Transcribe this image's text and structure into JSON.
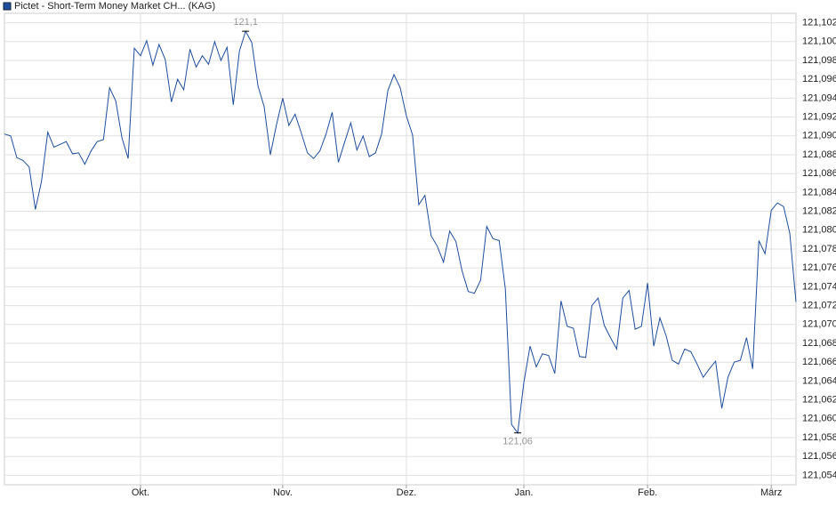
{
  "chart_data": {
    "type": "line",
    "series": [
      {
        "name": "Pictet - Short-Term Money Market CH... (KAG)",
        "color": "#1f4e9c",
        "values": [
          121.0902,
          121.09,
          121.0877,
          121.0874,
          121.0867,
          121.0822,
          121.0852,
          121.0904,
          121.0888,
          121.0891,
          121.0894,
          121.0881,
          121.0882,
          121.087,
          121.0884,
          121.0894,
          121.0896,
          121.0951,
          121.0937,
          121.0898,
          121.0876,
          121.0993,
          121.0985,
          121.1001,
          121.0975,
          121.0997,
          121.0981,
          121.0936,
          121.096,
          121.0949,
          121.0992,
          121.0973,
          121.0985,
          121.0976,
          121.1,
          121.098,
          121.0994,
          121.0933,
          121.099,
          121.1011,
          121.0999,
          121.0953,
          121.0931,
          121.088,
          121.0912,
          121.094,
          121.0911,
          121.0923,
          121.0903,
          121.0882,
          121.0876,
          121.0884,
          121.0902,
          121.0925,
          121.0872,
          121.0893,
          121.0914,
          121.0885,
          121.09,
          121.0878,
          121.0882,
          121.0902,
          121.0948,
          121.0965,
          121.0951,
          121.0921,
          121.0901,
          121.0827,
          121.0837,
          121.0794,
          121.0783,
          121.0766,
          121.0799,
          121.0788,
          121.0757,
          121.0735,
          121.0733,
          121.0747,
          121.0804,
          121.0791,
          121.0789,
          121.0738,
          121.0594,
          121.0585,
          121.0639,
          121.0677,
          121.0655,
          121.0669,
          121.0667,
          121.0648,
          121.0725,
          121.0698,
          121.0696,
          121.0666,
          121.0665,
          121.072,
          121.0728,
          121.0699,
          121.0686,
          121.0674,
          121.0728,
          121.0736,
          121.0695,
          121.0698,
          121.0744,
          121.0677,
          121.0707,
          121.0688,
          121.0662,
          121.0658,
          121.0674,
          121.0671,
          121.0658,
          121.0644,
          121.0653,
          121.0661,
          121.0611,
          121.0644,
          121.066,
          121.0662,
          121.0686,
          121.0653,
          121.0789,
          121.0775,
          121.0821,
          121.0829,
          121.0825,
          121.0797,
          121.0724
        ]
      }
    ],
    "categories": [
      null,
      null,
      null,
      null,
      null,
      null,
      null,
      null,
      null,
      null,
      null,
      null,
      null,
      null,
      null,
      null,
      null,
      null,
      null,
      null,
      null,
      null,
      "Okt.",
      null,
      null,
      null,
      null,
      null,
      null,
      null,
      null,
      null,
      null,
      null,
      null,
      null,
      null,
      null,
      null,
      null,
      null,
      null,
      null,
      null,
      null,
      "Nov.",
      null,
      null,
      null,
      null,
      null,
      null,
      null,
      null,
      null,
      null,
      null,
      null,
      null,
      null,
      null,
      null,
      null,
      null,
      null,
      "Dez.",
      null,
      null,
      null,
      null,
      null,
      null,
      null,
      null,
      null,
      null,
      null,
      null,
      null,
      null,
      null,
      null,
      null,
      null,
      "Jan.",
      null,
      null,
      null,
      null,
      null,
      null,
      null,
      null,
      null,
      null,
      null,
      null,
      null,
      null,
      null,
      null,
      null,
      null,
      null,
      "Feb.",
      null,
      null,
      null,
      null,
      null,
      null,
      null,
      null,
      null,
      null,
      null,
      null,
      null,
      null,
      null,
      null,
      null,
      null,
      null,
      "März",
      null,
      null,
      null,
      null
    ],
    "annotations": [
      "121,1",
      "121,06"
    ],
    "ylim": [
      121.053,
      121.103
    ],
    "yticks": [
      {
        "value": 121.054,
        "label": "121,054"
      },
      {
        "value": 121.056,
        "label": "121,056"
      },
      {
        "value": 121.058,
        "label": "121,058"
      },
      {
        "value": 121.06,
        "label": "121,060"
      },
      {
        "value": 121.062,
        "label": "121,062"
      },
      {
        "value": 121.064,
        "label": "121,064"
      },
      {
        "value": 121.066,
        "label": "121,066"
      },
      {
        "value": 121.068,
        "label": "121,068"
      },
      {
        "value": 121.07,
        "label": "121,070"
      },
      {
        "value": 121.072,
        "label": "121,072"
      },
      {
        "value": 121.074,
        "label": "121,074"
      },
      {
        "value": 121.076,
        "label": "121,076"
      },
      {
        "value": 121.078,
        "label": "121,078"
      },
      {
        "value": 121.08,
        "label": "121,080"
      },
      {
        "value": 121.082,
        "label": "121,082"
      },
      {
        "value": 121.084,
        "label": "121,084"
      },
      {
        "value": 121.086,
        "label": "121,086"
      },
      {
        "value": 121.088,
        "label": "121,088"
      },
      {
        "value": 121.09,
        "label": "121,090"
      },
      {
        "value": 121.092,
        "label": "121,092"
      },
      {
        "value": 121.094,
        "label": "121,094"
      },
      {
        "value": 121.096,
        "label": "121,096"
      },
      {
        "value": 121.098,
        "label": "121,098"
      },
      {
        "value": 121.1,
        "label": "121,100"
      },
      {
        "value": 121.102,
        "label": "121,102"
      }
    ],
    "grid": true
  }
}
